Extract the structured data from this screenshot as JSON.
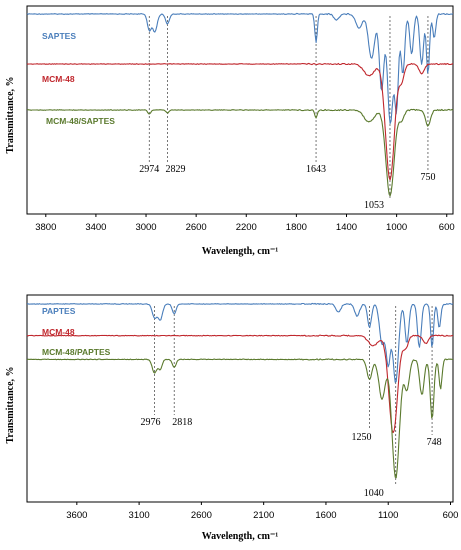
{
  "chart_data": [
    {
      "type": "line",
      "xlabel": "Wavelength, cm⁻¹",
      "ylabel": "Transmittance, %",
      "xlim": [
        3950,
        550
      ],
      "x_ticks": [
        "3800",
        "3400",
        "3000",
        "2600",
        "2200",
        "1800",
        "1400",
        "1000",
        "600"
      ],
      "tick_values": [
        3800,
        3400,
        3000,
        2600,
        2200,
        1800,
        1400,
        1000,
        600
      ],
      "series": [
        {
          "name": "SAPTES",
          "color": "#4a7ebb",
          "baseline": 0.02,
          "bands": [
            [
              2974,
              0.08,
              15
            ],
            [
              2930,
              0.09,
              18
            ],
            [
              2829,
              0.05,
              15
            ],
            [
              1643,
              0.14,
              10
            ],
            [
              1480,
              0.03,
              20
            ],
            [
              1300,
              0.07,
              25
            ],
            [
              1200,
              0.22,
              25
            ],
            [
              1120,
              0.38,
              18
            ],
            [
              1050,
              0.55,
              22
            ],
            [
              1000,
              0.45,
              15
            ],
            [
              950,
              0.3,
              15
            ],
            [
              880,
              0.2,
              15
            ],
            [
              800,
              0.25,
              15
            ],
            [
              750,
              0.3,
              12
            ],
            [
              700,
              0.12,
              12
            ]
          ]
        },
        {
          "name": "MCM-48",
          "color": "#c0272d",
          "baseline": 0.27,
          "bands": [
            [
              1220,
              0.06,
              40
            ],
            [
              1053,
              0.58,
              35
            ],
            [
              960,
              0.08,
              20
            ],
            [
              800,
              0.05,
              20
            ]
          ]
        },
        {
          "name": "MCM-48/SAPTES",
          "color": "#5b7a2e",
          "baseline": 0.5,
          "bands": [
            [
              2974,
              0.02,
              12
            ],
            [
              2829,
              0.015,
              12
            ],
            [
              1643,
              0.04,
              10
            ],
            [
              1220,
              0.06,
              40
            ],
            [
              1053,
              0.43,
              32
            ],
            [
              960,
              0.05,
              20
            ],
            [
              750,
              0.08,
              20
            ]
          ]
        }
      ],
      "peaks": [
        {
          "x": 2974,
          "label": "2974"
        },
        {
          "x": 2829,
          "label": "2829"
        },
        {
          "x": 1643,
          "label": "1643"
        },
        {
          "x": 1053,
          "label": "1053"
        },
        {
          "x": 750,
          "label": "750"
        }
      ]
    },
    {
      "type": "line",
      "xlabel": "Wavelength, cm⁻¹",
      "ylabel": "Transmittance, %",
      "xlim": [
        4000,
        580
      ],
      "x_ticks": [
        "3600",
        "3100",
        "2600",
        "2100",
        "1600",
        "1100",
        "600"
      ],
      "tick_values": [
        3600,
        3100,
        2600,
        2100,
        1600,
        1100,
        600
      ],
      "series": [
        {
          "name": "PAPTES",
          "color": "#4a7ebb",
          "baseline": 0.02,
          "bands": [
            [
              2976,
              0.07,
              18
            ],
            [
              2930,
              0.08,
              18
            ],
            [
              2818,
              0.05,
              15
            ],
            [
              1500,
              0.04,
              20
            ],
            [
              1350,
              0.06,
              20
            ],
            [
              1250,
              0.12,
              15
            ],
            [
              1150,
              0.2,
              20
            ],
            [
              1100,
              0.3,
              18
            ],
            [
              1040,
              0.4,
              22
            ],
            [
              950,
              0.2,
              15
            ],
            [
              850,
              0.22,
              15
            ],
            [
              748,
              0.22,
              12
            ],
            [
              690,
              0.12,
              12
            ]
          ]
        },
        {
          "name": "MCM-48",
          "color": "#c0272d",
          "baseline": 0.18,
          "bands": [
            [
              1220,
              0.05,
              40
            ],
            [
              1060,
              0.49,
              35
            ],
            [
              960,
              0.06,
              20
            ],
            [
              800,
              0.04,
              20
            ]
          ]
        },
        {
          "name": "MCM-48/PAPTES",
          "color": "#5b7a2e",
          "baseline": 0.3,
          "bands": [
            [
              2976,
              0.07,
              18
            ],
            [
              2930,
              0.05,
              15
            ],
            [
              2818,
              0.04,
              15
            ],
            [
              1250,
              0.1,
              20
            ],
            [
              1150,
              0.2,
              25
            ],
            [
              1040,
              0.6,
              30
            ],
            [
              950,
              0.15,
              20
            ],
            [
              830,
              0.18,
              18
            ],
            [
              748,
              0.3,
              15
            ],
            [
              680,
              0.15,
              12
            ]
          ]
        }
      ],
      "peaks": [
        {
          "x": 2976,
          "label": "2976"
        },
        {
          "x": 2818,
          "label": "2818"
        },
        {
          "x": 1250,
          "label": "1250"
        },
        {
          "x": 1040,
          "label": "1040"
        },
        {
          "x": 748,
          "label": "748"
        }
      ]
    }
  ]
}
